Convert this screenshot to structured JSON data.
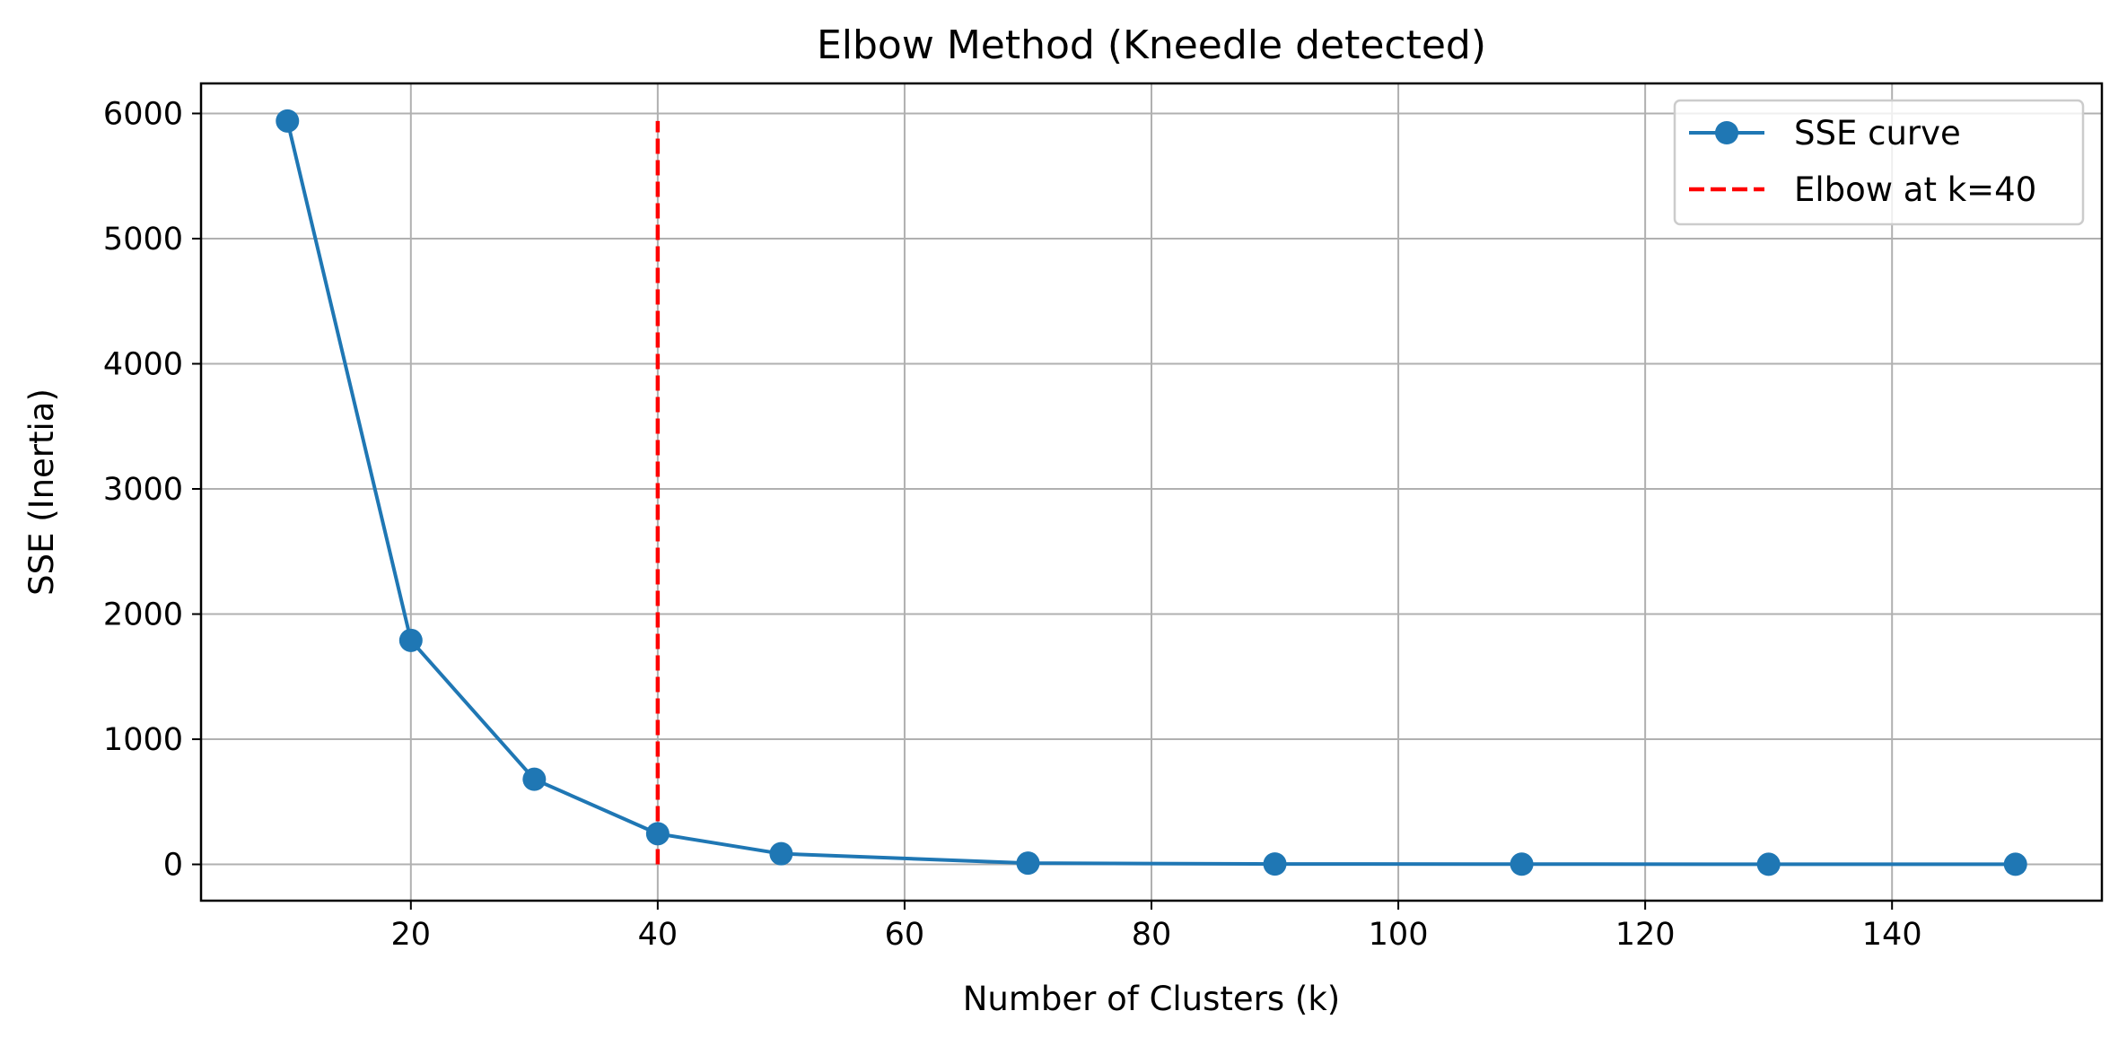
{
  "chart_data": {
    "type": "line",
    "title": "Elbow Method (Kneedle detected)",
    "xlabel": "Number of Clusters (k)",
    "ylabel": "SSE (Inertia)",
    "xlim": [
      3,
      157
    ],
    "ylim": [
      -290,
      6240
    ],
    "xticks": [
      20,
      40,
      60,
      80,
      100,
      120,
      140
    ],
    "yticks": [
      0,
      1000,
      2000,
      3000,
      4000,
      5000,
      6000
    ],
    "grid": true,
    "legend_position": "top-right",
    "series": [
      {
        "name": "SSE curve",
        "color": "#1f77b4",
        "marker": "circle",
        "x": [
          10,
          20,
          30,
          40,
          50,
          70,
          90,
          110,
          130,
          150
        ],
        "y": [
          5940,
          1790,
          680,
          245,
          85,
          10,
          3,
          2,
          1,
          1
        ]
      }
    ],
    "annotations": [
      {
        "type": "vline",
        "name": "Elbow at k=40",
        "x": 40,
        "y_from": 0,
        "y_to": 5940,
        "color": "#ff0000",
        "style": "dashed"
      }
    ]
  }
}
